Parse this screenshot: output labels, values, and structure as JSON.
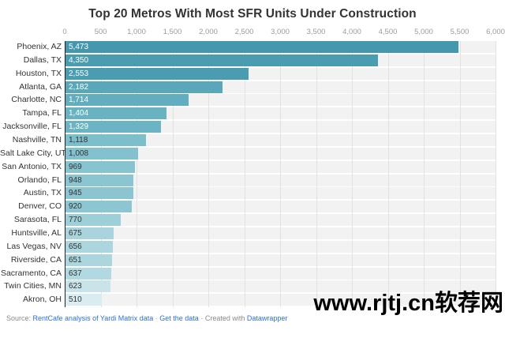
{
  "title": "Top 20 Metros With Most SFR Units Under Construction",
  "watermark": "www.rjtj.cn软荐网",
  "footer": {
    "prefix": "Source: ",
    "source_link": "RentCafe analysis of Yardi Matrix data",
    "sep1": " · ",
    "get_data_link": "Get the data",
    "sep2": " · ",
    "created_with": "Created with ",
    "datawrapper_link": "Datawrapper"
  },
  "colors": {
    "title_text": "#333333",
    "axis_text": "#9b9b9b",
    "label_text": "#333333",
    "row_strip": "#f2f2f2",
    "gridline": "#e2e2e2",
    "baseline": "#222222",
    "link_blue": "#2b6fd9",
    "footer_gray": "#8a8a8a",
    "watermark_black": "#000000"
  },
  "chart_data": {
    "type": "bar",
    "orientation": "horizontal",
    "title": "Top 20 Metros With Most SFR Units Under Construction",
    "xlabel": "",
    "ylabel": "",
    "xlim": [
      0,
      6000
    ],
    "grid": true,
    "legend": "none",
    "tick_values": [
      0,
      500,
      1000,
      1500,
      2000,
      2500,
      3000,
      3500,
      4000,
      4500,
      5000,
      5500,
      6000
    ],
    "tick_labels": [
      "0",
      "500",
      "1,000",
      "1,500",
      "2,000",
      "2,500",
      "3,000",
      "3,500",
      "4,000",
      "4,500",
      "5,000",
      "5,500",
      "6,000"
    ],
    "rows": [
      {
        "metro": "Phoenix, AZ",
        "value": 5473,
        "label": "5,473",
        "bar_color": "#4497AD",
        "value_text_color": "#FFFFFF"
      },
      {
        "metro": "Dallas, TX",
        "value": 4350,
        "label": "4,350",
        "bar_color": "#4A9DB1",
        "value_text_color": "#FFFFFF"
      },
      {
        "metro": "Houston, TX",
        "value": 2553,
        "label": "2,553",
        "bar_color": "#4A9DB1",
        "value_text_color": "#FFFFFF"
      },
      {
        "metro": "Atlanta, GA",
        "value": 2182,
        "label": "2,182",
        "bar_color": "#59A7B9",
        "value_text_color": "#FFFFFF"
      },
      {
        "metro": "Charlotte, NC",
        "value": 1714,
        "label": "1,714",
        "bar_color": "#62ADBF",
        "value_text_color": "#FFFFFF"
      },
      {
        "metro": "Tampa, FL",
        "value": 1404,
        "label": "1,404",
        "bar_color": "#68B2C2",
        "value_text_color": "#FFFFFF"
      },
      {
        "metro": "Jacksonville, FL",
        "value": 1329,
        "label": "1,329",
        "bar_color": "#6CB4C4",
        "value_text_color": "#FFFFFF"
      },
      {
        "metro": "Nashville, TN",
        "value": 1118,
        "label": "1,118",
        "bar_color": "#7DBECB",
        "value_text_color": "#333333"
      },
      {
        "metro": "Salt Lake City, UT",
        "value": 1008,
        "label": "1,008",
        "bar_color": "#82C1CD",
        "value_text_color": "#333333"
      },
      {
        "metro": "San Antonio, TX",
        "value": 969,
        "label": "969",
        "bar_color": "#88C4D0",
        "value_text_color": "#333333"
      },
      {
        "metro": "Orlando, FL",
        "value": 948,
        "label": "948",
        "bar_color": "#8AC5D1",
        "value_text_color": "#333333"
      },
      {
        "metro": "Austin, TX",
        "value": 945,
        "label": "945",
        "bar_color": "#8AC5D1",
        "value_text_color": "#333333"
      },
      {
        "metro": "Denver, CO",
        "value": 920,
        "label": "920",
        "bar_color": "#8CC6D2",
        "value_text_color": "#333333"
      },
      {
        "metro": "Sarasota, FL",
        "value": 770,
        "label": "770",
        "bar_color": "#9DCFD8",
        "value_text_color": "#333333"
      },
      {
        "metro": "Huntsville, AL",
        "value": 675,
        "label": "675",
        "bar_color": "#A9D4DD",
        "value_text_color": "#333333"
      },
      {
        "metro": "Las Vegas, NV",
        "value": 656,
        "label": "656",
        "bar_color": "#ABD6DE",
        "value_text_color": "#333333"
      },
      {
        "metro": "Riverside, CA",
        "value": 651,
        "label": "651",
        "bar_color": "#ACD6DE",
        "value_text_color": "#333333"
      },
      {
        "metro": "Sacramento, CA",
        "value": 637,
        "label": "637",
        "bar_color": "#B1D9E1",
        "value_text_color": "#333333"
      },
      {
        "metro": "Twin Cities, MN",
        "value": 623,
        "label": "623",
        "bar_color": "#C8E4E9",
        "value_text_color": "#333333"
      },
      {
        "metro": "Akron, OH",
        "value": 510,
        "label": "510",
        "bar_color": "#D9EDF0",
        "value_text_color": "#333333"
      }
    ]
  }
}
